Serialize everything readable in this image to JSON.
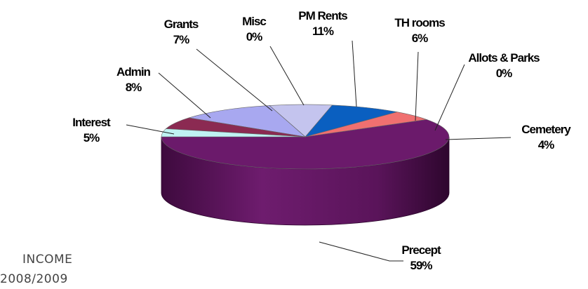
{
  "chart_data": {
    "type": "pie",
    "title": "",
    "categories": [
      "Precept",
      "Interest",
      "Admin",
      "Grants",
      "Misc",
      "PM Rents",
      "TH rooms",
      "Allots & Parks",
      "Cemetery"
    ],
    "values": [
      59,
      5,
      8,
      7,
      0,
      11,
      6,
      0,
      4
    ],
    "value_labels": [
      "59%",
      "5%",
      "8%",
      "7%",
      "0%",
      "11%",
      "6%",
      "0%",
      "4%"
    ],
    "colors": [
      "#6b1a6b",
      "#f07070",
      "#0a5fc0",
      "#c4c4ee",
      "#ffffff",
      "#a8a8f0",
      "#8b2a52",
      "#d8eef8",
      "#bff3f3"
    ],
    "legend": "none",
    "three_d": true
  },
  "caption": {
    "line1": "INCOME",
    "line2": "2008/2009"
  }
}
